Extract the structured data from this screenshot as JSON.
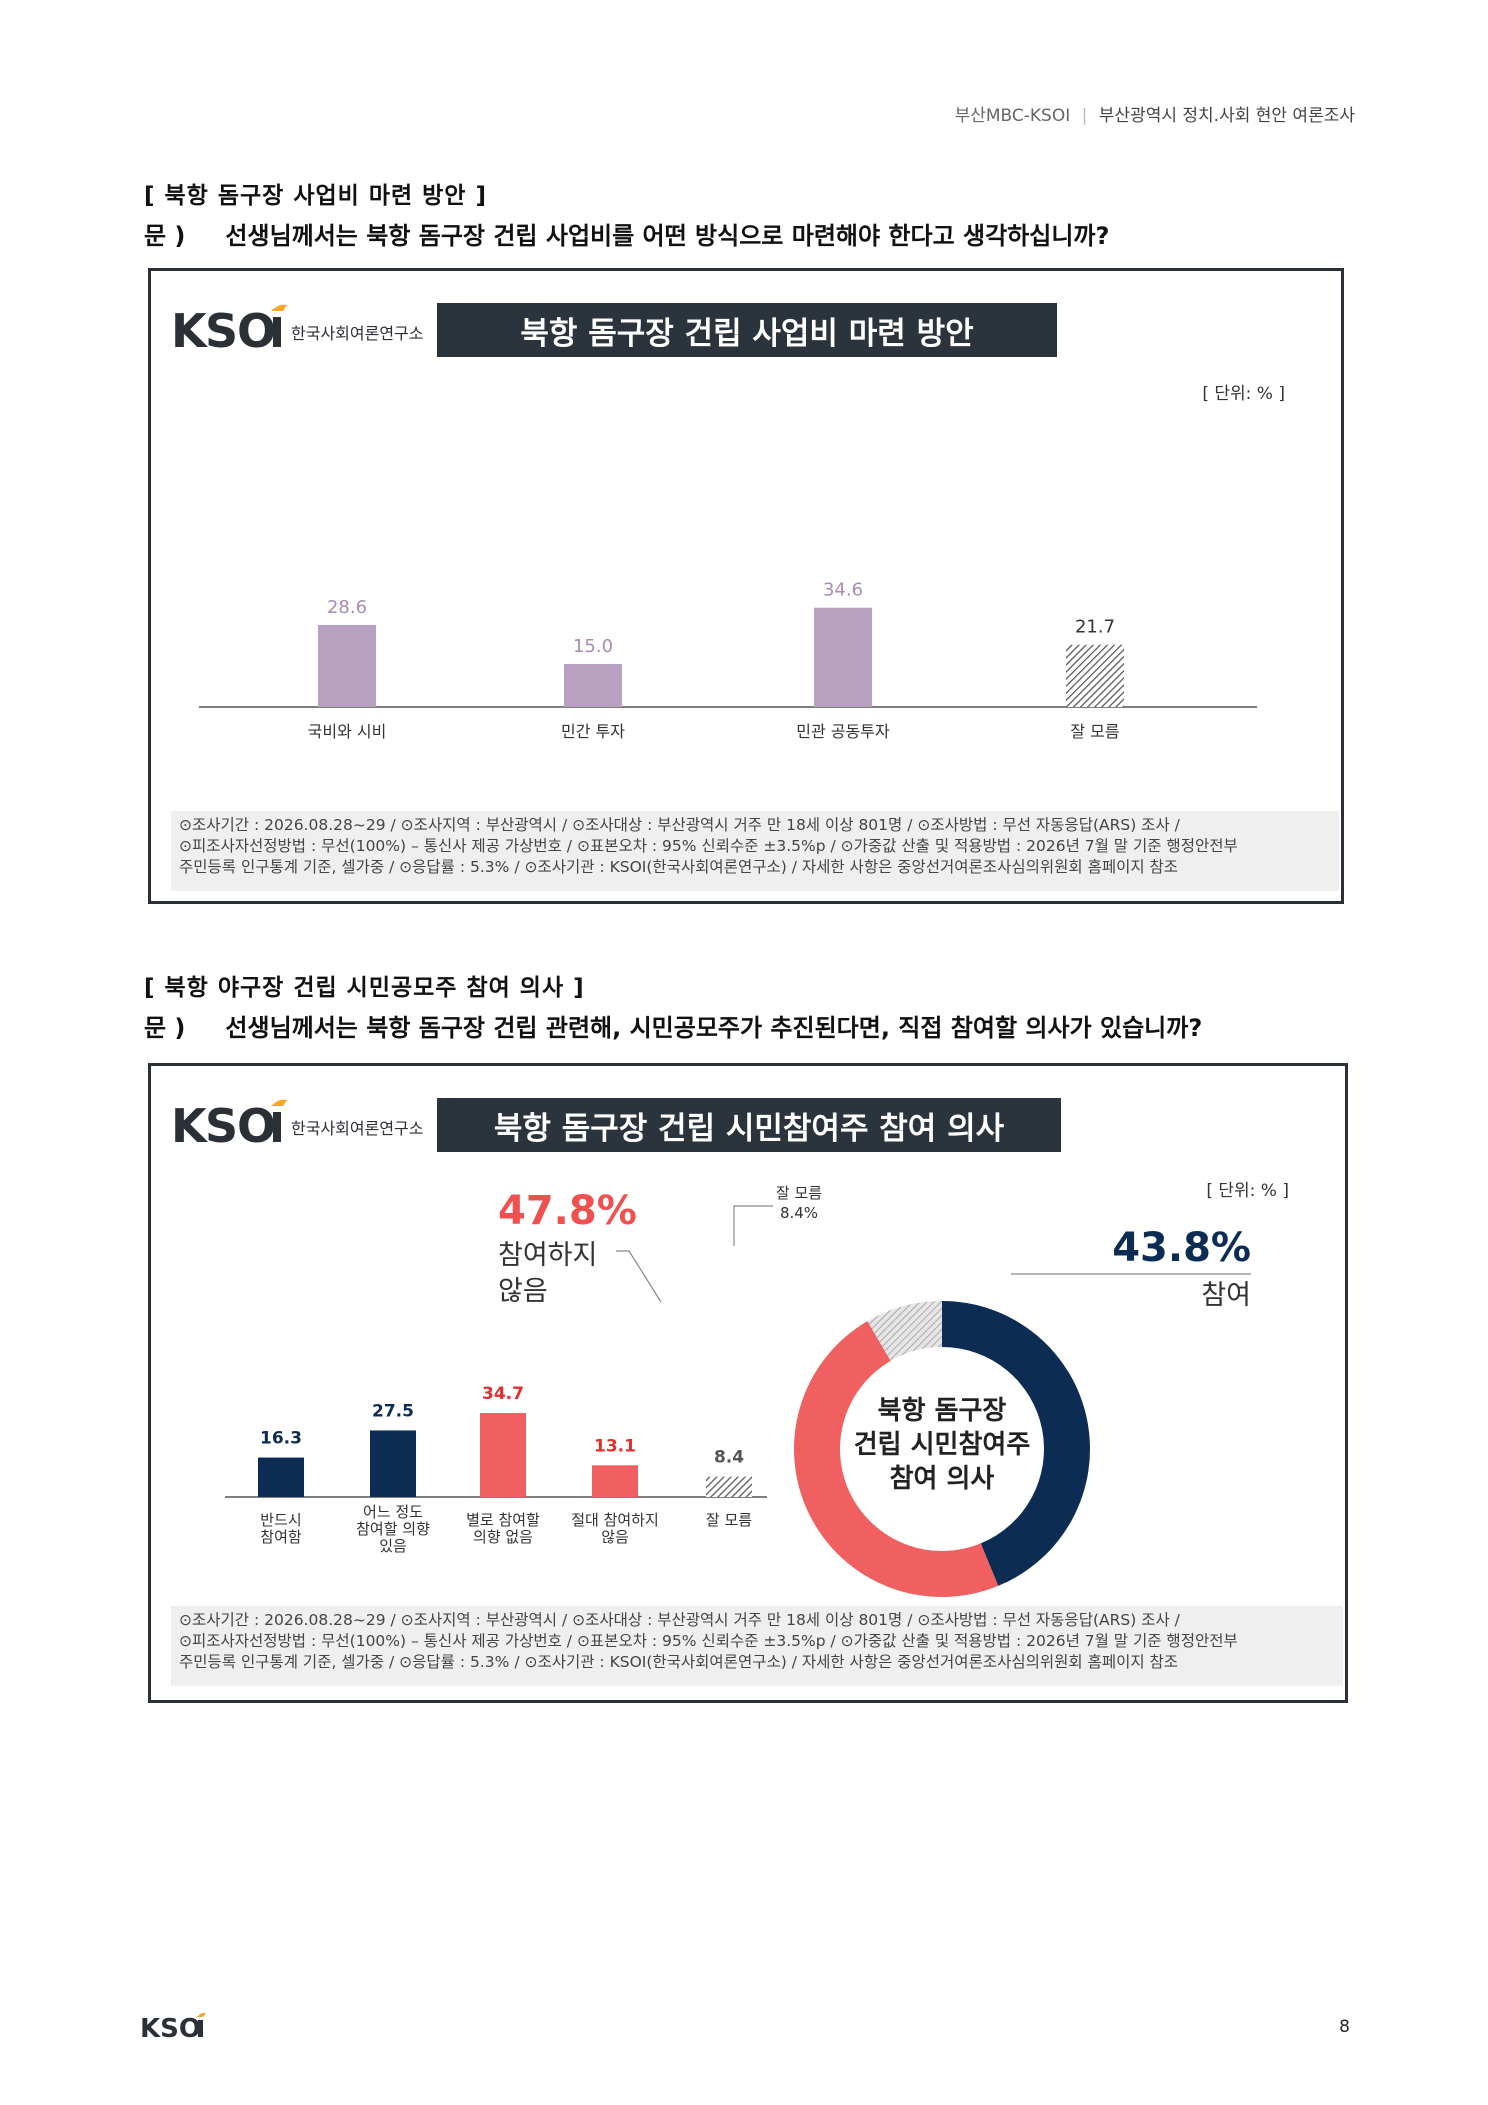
{
  "header": {
    "left": "부산MBC-KSOI",
    "sep": "|",
    "right": "부산광역시 정치.사회 현안 여론조사"
  },
  "colors": {
    "purple": "#b8a0c0",
    "navy": "#0d2c54",
    "red": "#f06060",
    "gray_hatch": "#888888",
    "banner_bg": "#2b333c"
  },
  "logo": {
    "brand": "KSOI",
    "sub": "한국사회여론연구소"
  },
  "section1": {
    "title": "[ 북항 돔구장 사업비 마련 방안 ]",
    "q_prefix": "문 )",
    "question": "선생님께서는 북항 돔구장 건립 사업비를 어떤 방식으로 마련해야 한다고 생각하십니까?",
    "banner": "북항 돔구장 건립 사업비 마련 방안",
    "unit": "[ 단위: % ]",
    "footnote": [
      "⊙조사기간 : 2026.08.28~29 / ⊙조사지역 : 부산광역시 / ⊙조사대상 : 부산광역시 거주 만 18세 이상 801명 / ⊙조사방법 : 무선 자동응답(ARS) 조사 /",
      "⊙피조사자선정방법 : 무선(100%) – 통신사 제공 가상번호 / ⊙표본오차 : 95% 신뢰수준 ±3.5%p / ⊙가중값 산출 및 적용방법 : 2026년 7월 말 기준 행정안전부",
      "주민등록 인구통계 기준, 셀가중 / ⊙응답률 : 5.3% / ⊙조사기관 : KSOI(한국사회여론연구소) / 자세한 사항은 중앙선거여론조사심의위원회 홈페이지 참조"
    ]
  },
  "section2": {
    "title": "[ 북항 야구장 건립 시민공모주 참여 의사 ]",
    "q_prefix": "문 )",
    "question": "선생님께서는 북항 돔구장 건립 관련해, 시민공모주가 추진된다면, 직접 참여할 의사가 있습니까?",
    "banner": "북항 돔구장 건립 시민참여주 참여 의사",
    "unit": "[ 단위: % ]",
    "donut_center": [
      "북항 돔구장",
      "건립 시민참여주",
      "참여 의사"
    ],
    "donut_labels": {
      "no_value": "47.8%",
      "no_label": [
        "참여하지",
        "않음"
      ],
      "yes_value": "43.8%",
      "yes_label": "참여",
      "dk_label": "잘 모름",
      "dk_value": "8.4%"
    },
    "footnote": [
      "⊙조사기간 : 2026.08.28~29 / ⊙조사지역 : 부산광역시 / ⊙조사대상 : 부산광역시 거주 만 18세 이상 801명 / ⊙조사방법 : 무선 자동응답(ARS) 조사 /",
      "⊙피조사자선정방법 : 무선(100%) – 통신사 제공 가상번호 / ⊙표본오차 : 95% 신뢰수준 ±3.5%p / ⊙가중값 산출 및 적용방법 : 2026년 7월 말 기준 행정안전부",
      "주민등록 인구통계 기준, 셀가중 / ⊙응답률 : 5.3% / ⊙조사기관 : KSOI(한국사회여론연구소) / 자세한 사항은 중앙선거여론조사심의위원회 홈페이지 참조"
    ]
  },
  "chart_data": [
    {
      "type": "bar",
      "title": "북항 돔구장 건립 사업비 마련 방안",
      "categories": [
        "국비와 시비",
        "민간 투자",
        "민관 공동투자",
        "잘 모름"
      ],
      "values": [
        28.6,
        15.0,
        34.6,
        21.7
      ],
      "value_labels": [
        "28.6",
        "15.0",
        "34.6",
        "21.7"
      ],
      "unit": "[ 단위: % ]",
      "ylim": [
        0,
        100
      ],
      "grid": false
    },
    {
      "type": "bar",
      "title": "북항 돔구장 건립 시민참여주 참여 의사",
      "categories": [
        [
          "반드시",
          "참여함"
        ],
        [
          "어느 정도",
          "참여할 의향",
          "있음"
        ],
        [
          "별로 참여할",
          "의향 없음"
        ],
        [
          "절대 참여하지",
          "않음"
        ],
        [
          "잘 모름"
        ]
      ],
      "values": [
        16.3,
        27.5,
        34.7,
        13.1,
        8.4
      ],
      "value_labels": [
        "16.3",
        "27.5",
        "34.7",
        "13.1",
        "8.4"
      ],
      "ylim": [
        0,
        100
      ],
      "grid": false
    },
    {
      "type": "pie",
      "title": "북항 돔구장 건립 시민참여주 참여 의사",
      "categories": [
        "참여",
        "참여하지 않음",
        "잘 모름"
      ],
      "values": [
        43.8,
        47.8,
        8.4
      ],
      "donut": true
    }
  ],
  "page": {
    "number": "8"
  }
}
